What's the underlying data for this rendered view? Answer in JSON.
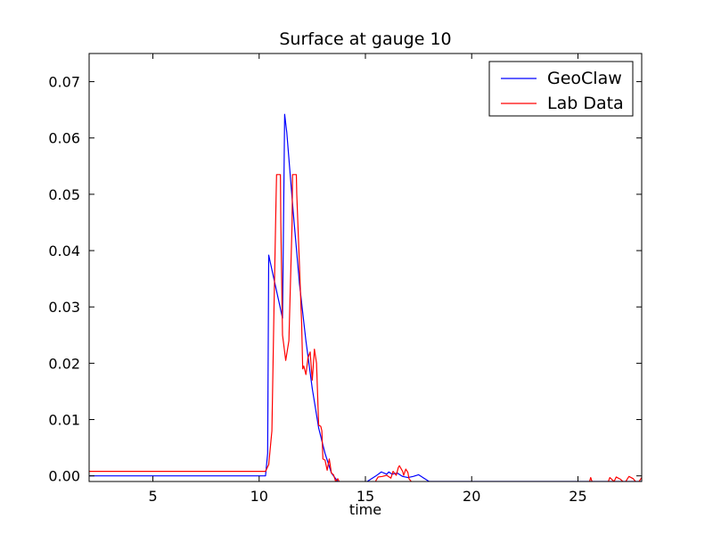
{
  "chart_data": {
    "type": "line",
    "title": "Surface at gauge 10",
    "xlabel": "time",
    "ylabel": "",
    "xlim": [
      2,
      28
    ],
    "ylim": [
      -0.001,
      0.075
    ],
    "xticks": [
      5,
      10,
      15,
      20,
      25
    ],
    "yticks": [
      0.0,
      0.01,
      0.02,
      0.03,
      0.04,
      0.05,
      0.06,
      0.07
    ],
    "ytick_labels": [
      "0.00",
      "0.01",
      "0.02",
      "0.03",
      "0.04",
      "0.05",
      "0.06",
      "0.07"
    ],
    "grid": false,
    "legend_position": "top-right",
    "series": [
      {
        "name": "GeoClaw",
        "color": "#0000ff",
        "x": [
          2,
          10.3,
          10.4,
          10.45,
          11.1,
          11.2,
          11.3,
          11.6,
          11.9,
          12.2,
          12.5,
          12.8,
          13.1,
          13.4,
          13.7,
          14.0,
          14.5,
          15.0,
          15.5,
          15.75,
          16.0,
          16.1,
          16.25,
          16.5,
          16.75,
          17.0,
          17.25,
          17.5,
          17.75,
          18.0,
          28
        ],
        "y": [
          0.0,
          0.0,
          0.004,
          0.0392,
          0.028,
          0.0642,
          0.061,
          0.047,
          0.034,
          0.024,
          0.0155,
          0.0085,
          0.004,
          0.0005,
          -0.001,
          -0.0015,
          -0.0015,
          -0.0012,
          0.0,
          0.0007,
          0.0003,
          0.0007,
          0.0003,
          0.0005,
          -0.0001,
          -0.0003,
          -0.0001,
          0.0002,
          -0.0004,
          -0.001,
          -0.001
        ]
      },
      {
        "name": "Lab Data",
        "color": "#ff0000",
        "x": [
          2,
          10.3,
          10.45,
          10.6,
          10.7,
          10.8,
          10.82,
          11.0,
          11.02,
          11.1,
          11.25,
          11.4,
          11.55,
          11.57,
          11.75,
          11.77,
          11.9,
          12.0,
          12.05,
          12.1,
          12.2,
          12.3,
          12.4,
          12.5,
          12.6,
          12.7,
          12.8,
          12.9,
          12.95,
          13.0,
          13.1,
          13.2,
          13.3,
          13.4,
          13.5,
          13.6,
          13.7,
          13.8,
          13.9,
          14.0,
          14.5,
          15.0,
          15.2,
          15.45,
          15.5,
          15.6,
          15.8,
          16.0,
          16.2,
          16.3,
          16.45,
          16.55,
          16.6,
          16.75,
          16.8,
          16.9,
          17.0,
          17.05,
          17.2,
          17.5,
          18.0,
          18.5,
          18.6,
          18.7,
          19.0,
          20.0,
          22.0,
          24.0,
          25.0,
          25.5,
          25.6,
          25.7,
          26.0,
          26.4,
          26.5,
          26.7,
          26.8,
          27.0,
          27.2,
          27.4,
          27.6,
          27.8,
          28.0
        ],
        "y": [
          0.0008,
          0.0008,
          0.002,
          0.008,
          0.03,
          0.05,
          0.0535,
          0.0535,
          0.045,
          0.025,
          0.0205,
          0.024,
          0.045,
          0.0535,
          0.0535,
          0.05,
          0.037,
          0.027,
          0.019,
          0.0195,
          0.018,
          0.021,
          0.022,
          0.017,
          0.0225,
          0.02,
          0.009,
          0.0088,
          0.008,
          0.003,
          0.0028,
          0.001,
          0.003,
          0.0005,
          0.0002,
          -0.001,
          -0.0005,
          -0.0013,
          -0.002,
          -0.002,
          -0.002,
          -0.002,
          -0.0015,
          -0.0015,
          -0.0008,
          -0.0002,
          -0.0001,
          0.0001,
          -0.0004,
          0.0008,
          0.0001,
          0.0015,
          0.0018,
          0.0008,
          0.0001,
          0.0012,
          0.0006,
          -0.0005,
          -0.0012,
          -0.002,
          -0.0018,
          -0.0015,
          -0.0012,
          -0.0018,
          -0.002,
          -0.002,
          -0.002,
          -0.002,
          -0.002,
          -0.0016,
          -0.0003,
          -0.0014,
          -0.0017,
          -0.0013,
          -0.0003,
          -0.001,
          -0.0002,
          -0.0006,
          -0.0013,
          -0.0001,
          -0.0005,
          -0.0014,
          -0.0003
        ]
      }
    ]
  }
}
